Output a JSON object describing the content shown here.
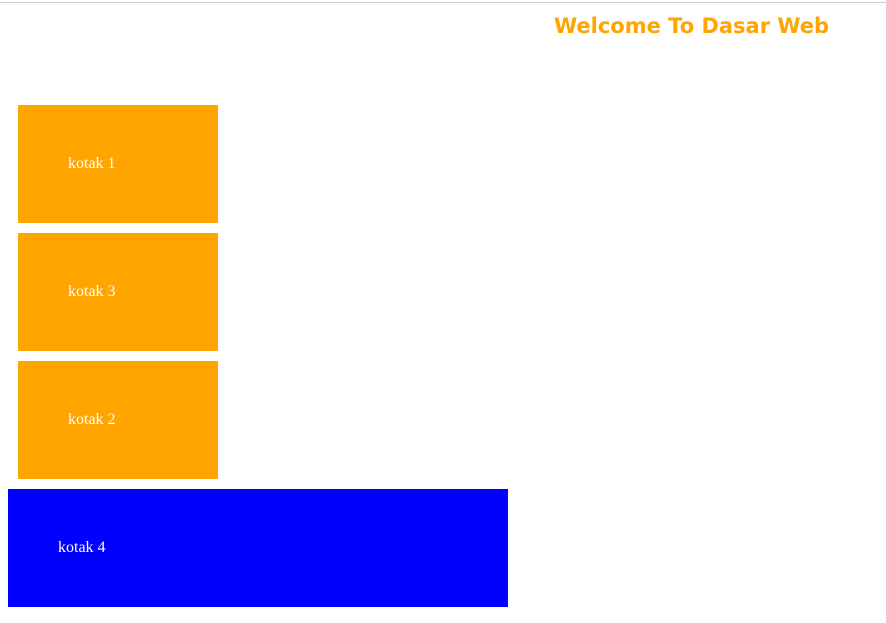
{
  "header": {
    "title": "Welcome To Dasar Web"
  },
  "boxes": [
    {
      "label": "kotak 1"
    },
    {
      "label": "kotak 3"
    },
    {
      "label": "kotak 2"
    },
    {
      "label": "kotak 4"
    }
  ],
  "colors": {
    "title": "#ffa500",
    "box_orange": "#ffa500",
    "box_blue": "#0000ff",
    "box_text": "#ffffff"
  }
}
